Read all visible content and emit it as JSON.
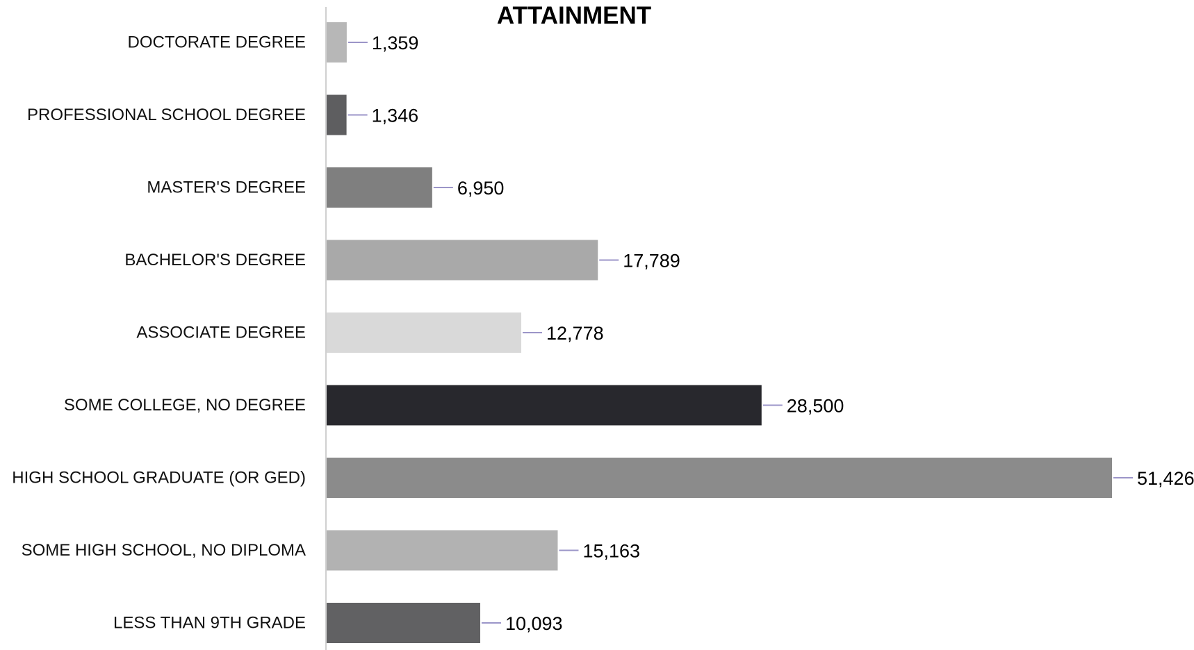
{
  "chart_data": {
    "type": "bar",
    "orientation": "horizontal",
    "title": "ATTAINMENT",
    "xlabel": "",
    "ylabel": "",
    "xlim": [
      0,
      51426
    ],
    "grid": false,
    "legend": "none",
    "categories": [
      "DOCTORATE DEGREE",
      "PROFESSIONAL SCHOOL DEGREE",
      "MASTER'S DEGREE",
      "BACHELOR'S DEGREE",
      "ASSOCIATE DEGREE",
      "SOME COLLEGE, NO DEGREE",
      "HIGH SCHOOL GRADUATE (OR GED)",
      "SOME HIGH SCHOOL, NO DIPLOMA",
      "LESS THAN 9TH GRADE"
    ],
    "values": [
      1359,
      1346,
      6950,
      17789,
      12778,
      28500,
      51426,
      15163,
      10093
    ],
    "value_labels": [
      "1,359",
      "1,346",
      "6,950",
      "17,789",
      "12,778",
      "28,500",
      "51,426",
      "15,163",
      "10,093"
    ],
    "bar_colors": [
      "#b7b7b7",
      "#5e5e60",
      "#7f7f7f",
      "#a9a9a9",
      "#d9d9d9",
      "#28282d",
      "#8b8b8b",
      "#b2b2b2",
      "#616163"
    ],
    "axis_color": "#d0d0d0",
    "leader_line_color": "#9b95c8"
  }
}
